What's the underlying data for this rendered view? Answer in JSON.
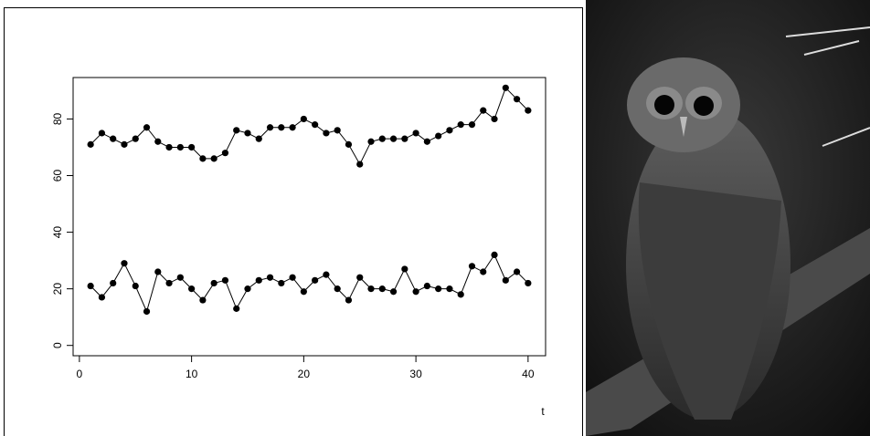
{
  "chart_data": {
    "type": "line",
    "x_label": "t",
    "x": [
      1,
      2,
      3,
      4,
      5,
      6,
      7,
      8,
      9,
      10,
      11,
      12,
      13,
      14,
      15,
      16,
      17,
      18,
      19,
      20,
      21,
      22,
      23,
      24,
      25,
      26,
      27,
      28,
      29,
      30,
      31,
      32,
      33,
      34,
      35,
      36,
      37,
      38,
      39,
      40
    ],
    "series": [
      {
        "color": "#000000",
        "values": [
          71,
          75,
          73,
          71,
          73,
          77,
          72,
          70,
          70,
          70,
          66,
          66,
          68,
          76,
          75,
          73,
          77,
          77,
          77,
          80,
          78,
          75,
          76,
          71,
          64,
          72,
          73,
          73,
          73,
          75,
          72,
          74,
          76,
          78,
          78,
          83,
          80,
          91,
          87,
          83
        ]
      },
      {
        "color": "#000000",
        "values": [
          21,
          17,
          22,
          29,
          21,
          12,
          26,
          22,
          24,
          20,
          16,
          22,
          23,
          13,
          20,
          23,
          24,
          22,
          24,
          19,
          23,
          25,
          20,
          16,
          24,
          20,
          20,
          19,
          27,
          19,
          21,
          20,
          20,
          18,
          28,
          26,
          32,
          23,
          26,
          22
        ]
      }
    ],
    "xlim": [
      -0.56,
      41.56
    ],
    "xticks": [
      0,
      10,
      20,
      30,
      40
    ],
    "ylim": [
      -3.64,
      94.64
    ],
    "yticks": [
      0,
      20,
      40,
      60,
      80
    ]
  }
}
